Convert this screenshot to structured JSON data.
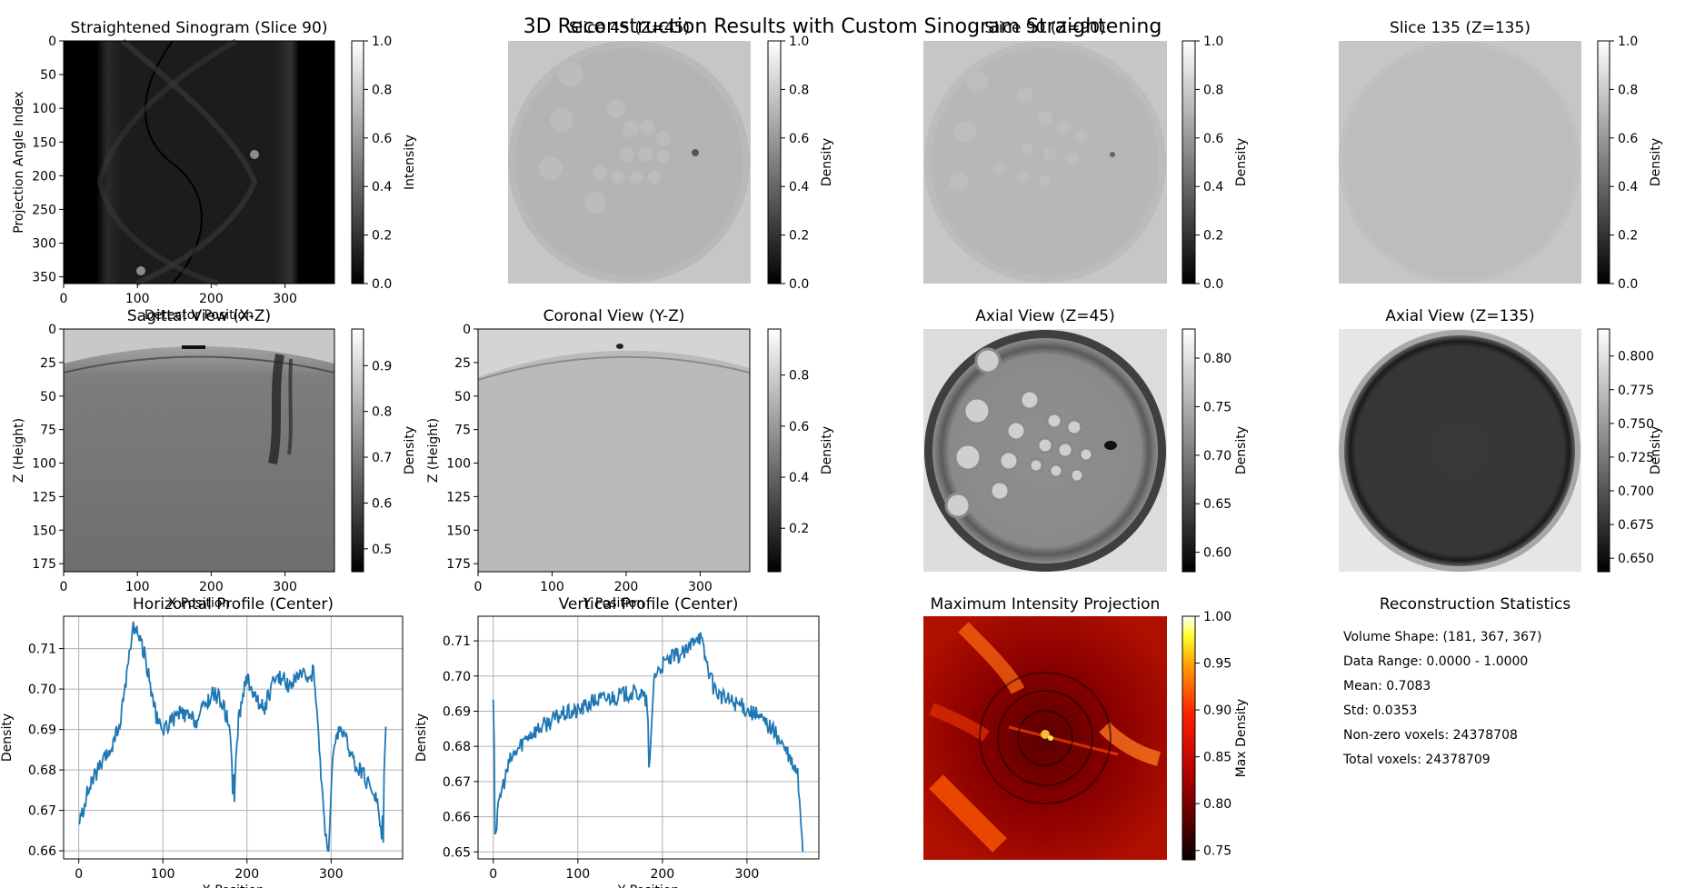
{
  "figure": {
    "suptitle": "3D Reconstruction Results with Custom Sinogram Straightening"
  },
  "chart_data": [
    {
      "type": "heatmap",
      "title": "Straightened Sinogram (Slice 90)",
      "xlabel": "Detector Position",
      "ylabel": "Projection Angle Index",
      "xticks": [
        "0",
        "100",
        "200",
        "300"
      ],
      "yticks": [
        "0",
        "50",
        "100",
        "150",
        "200",
        "250",
        "300",
        "350"
      ],
      "xlim": [
        0,
        367
      ],
      "ylim": [
        0,
        360
      ],
      "colorbar": {
        "label": "Intensity",
        "ticks": [
          "0.0",
          "0.2",
          "0.4",
          "0.6",
          "0.8",
          "1.0"
        ],
        "range": [
          0,
          1
        ],
        "cmap": "gray"
      }
    },
    {
      "type": "heatmap",
      "title": "Slice 45 (Z=45)",
      "colorbar": {
        "label": "Density",
        "ticks": [
          "0.0",
          "0.2",
          "0.4",
          "0.6",
          "0.8",
          "1.0"
        ],
        "range": [
          0,
          1
        ],
        "cmap": "gray"
      }
    },
    {
      "type": "heatmap",
      "title": "Slice 90 (Z=90)",
      "colorbar": {
        "label": "Density",
        "ticks": [
          "0.0",
          "0.2",
          "0.4",
          "0.6",
          "0.8",
          "1.0"
        ],
        "range": [
          0,
          1
        ],
        "cmap": "gray"
      }
    },
    {
      "type": "heatmap",
      "title": "Slice 135 (Z=135)",
      "colorbar": {
        "label": "Density",
        "ticks": [
          "0.0",
          "0.2",
          "0.4",
          "0.6",
          "0.8",
          "1.0"
        ],
        "range": [
          0,
          1
        ],
        "cmap": "gray"
      }
    },
    {
      "type": "heatmap",
      "title": "Sagittal View (X-Z)",
      "xlabel": "X Position",
      "ylabel": "Z (Height)",
      "xticks": [
        "0",
        "100",
        "200",
        "300"
      ],
      "yticks": [
        "0",
        "25",
        "50",
        "75",
        "100",
        "125",
        "150",
        "175"
      ],
      "xlim": [
        0,
        367
      ],
      "ylim": [
        0,
        181
      ],
      "colorbar": {
        "label": "Density",
        "ticks": [
          "0.5",
          "0.6",
          "0.7",
          "0.8",
          "0.9"
        ],
        "range": [
          0.45,
          0.98
        ],
        "cmap": "gray"
      }
    },
    {
      "type": "heatmap",
      "title": "Coronal View (Y-Z)",
      "xlabel": "Y Position",
      "ylabel": "Z (Height)",
      "xticks": [
        "0",
        "100",
        "200",
        "300"
      ],
      "yticks": [
        "0",
        "25",
        "50",
        "75",
        "100",
        "125",
        "150",
        "175"
      ],
      "xlim": [
        0,
        367
      ],
      "ylim": [
        0,
        181
      ],
      "colorbar": {
        "label": "Density",
        "ticks": [
          "0.2",
          "0.4",
          "0.6",
          "0.8"
        ],
        "range": [
          0.03,
          0.98
        ],
        "cmap": "gray"
      }
    },
    {
      "type": "heatmap",
      "title": "Axial View (Z=45)",
      "colorbar": {
        "label": "Density",
        "ticks": [
          "0.60",
          "0.65",
          "0.70",
          "0.75",
          "0.80"
        ],
        "range": [
          0.58,
          0.83
        ],
        "cmap": "gray"
      }
    },
    {
      "type": "heatmap",
      "title": "Axial View (Z=135)",
      "colorbar": {
        "label": "Density",
        "ticks": [
          "0.650",
          "0.675",
          "0.700",
          "0.725",
          "0.750",
          "0.775",
          "0.800"
        ],
        "range": [
          0.64,
          0.82
        ],
        "cmap": "gray"
      }
    },
    {
      "type": "line",
      "title": "Horizontal Profile (Center)",
      "xlabel": "X Position",
      "ylabel": "Density",
      "xlim": [
        -18,
        385
      ],
      "ylim": [
        0.658,
        0.718
      ],
      "xticks": [
        0,
        100,
        200,
        300
      ],
      "yticks": [
        0.66,
        0.67,
        0.68,
        0.69,
        0.7,
        0.71
      ],
      "ytick_labels": [
        "0.66",
        "0.67",
        "0.68",
        "0.69",
        "0.70",
        "0.71"
      ],
      "grid": true,
      "color": "#1f77b4",
      "knots": [
        [
          0,
          0.666
        ],
        [
          10,
          0.674
        ],
        [
          20,
          0.679
        ],
        [
          30,
          0.682
        ],
        [
          40,
          0.686
        ],
        [
          50,
          0.692
        ],
        [
          55,
          0.701
        ],
        [
          60,
          0.708
        ],
        [
          65,
          0.716
        ],
        [
          70,
          0.714
        ],
        [
          75,
          0.711
        ],
        [
          80,
          0.707
        ],
        [
          85,
          0.701
        ],
        [
          90,
          0.695
        ],
        [
          95,
          0.691
        ],
        [
          100,
          0.69
        ],
        [
          110,
          0.692
        ],
        [
          120,
          0.694
        ],
        [
          130,
          0.693
        ],
        [
          140,
          0.692
        ],
        [
          150,
          0.696
        ],
        [
          160,
          0.699
        ],
        [
          170,
          0.697
        ],
        [
          180,
          0.69
        ],
        [
          185,
          0.674
        ],
        [
          190,
          0.693
        ],
        [
          200,
          0.703
        ],
        [
          210,
          0.698
        ],
        [
          220,
          0.695
        ],
        [
          230,
          0.701
        ],
        [
          240,
          0.703
        ],
        [
          250,
          0.701
        ],
        [
          260,
          0.703
        ],
        [
          270,
          0.703
        ],
        [
          280,
          0.704
        ],
        [
          285,
          0.688
        ],
        [
          292,
          0.667
        ],
        [
          297,
          0.66
        ],
        [
          302,
          0.683
        ],
        [
          310,
          0.691
        ],
        [
          320,
          0.686
        ],
        [
          330,
          0.681
        ],
        [
          340,
          0.678
        ],
        [
          350,
          0.675
        ],
        [
          355,
          0.672
        ],
        [
          360,
          0.663
        ],
        [
          362,
          0.674
        ],
        [
          365,
          0.69
        ]
      ],
      "spikes": [
        [
          183,
          0.674
        ],
        [
          297,
          0.66
        ],
        [
          362,
          0.662
        ]
      ]
    },
    {
      "type": "line",
      "title": "Vertical Profile (Center)",
      "xlabel": "Y Position",
      "ylabel": "Density",
      "xlim": [
        -18,
        385
      ],
      "ylim": [
        0.648,
        0.717
      ],
      "xticks": [
        0,
        100,
        200,
        300
      ],
      "yticks": [
        0.65,
        0.66,
        0.67,
        0.68,
        0.69,
        0.7,
        0.71
      ],
      "ytick_labels": [
        "0.65",
        "0.66",
        "0.67",
        "0.68",
        "0.69",
        "0.70",
        "0.71"
      ],
      "grid": true,
      "color": "#1f77b4",
      "knots": [
        [
          0,
          0.695
        ],
        [
          3,
          0.656
        ],
        [
          8,
          0.666
        ],
        [
          20,
          0.676
        ],
        [
          40,
          0.683
        ],
        [
          60,
          0.686
        ],
        [
          80,
          0.689
        ],
        [
          100,
          0.69
        ],
        [
          120,
          0.693
        ],
        [
          140,
          0.694
        ],
        [
          160,
          0.695
        ],
        [
          175,
          0.695
        ],
        [
          182,
          0.692
        ],
        [
          185,
          0.674
        ],
        [
          190,
          0.7
        ],
        [
          200,
          0.703
        ],
        [
          210,
          0.705
        ],
        [
          220,
          0.706
        ],
        [
          230,
          0.707
        ],
        [
          240,
          0.712
        ],
        [
          245,
          0.711
        ],
        [
          250,
          0.706
        ],
        [
          260,
          0.697
        ],
        [
          270,
          0.694
        ],
        [
          290,
          0.692
        ],
        [
          310,
          0.689
        ],
        [
          330,
          0.685
        ],
        [
          345,
          0.679
        ],
        [
          355,
          0.674
        ],
        [
          360,
          0.672
        ],
        [
          363,
          0.66
        ],
        [
          366,
          0.652
        ]
      ],
      "spikes": [
        [
          184,
          0.674
        ],
        [
          366,
          0.65
        ],
        [
          2,
          0.655
        ]
      ]
    },
    {
      "type": "heatmap",
      "title": "Maximum Intensity Projection",
      "colorbar": {
        "label": "Max Density",
        "ticks": [
          "0.75",
          "0.80",
          "0.85",
          "0.90",
          "0.95",
          "1.00"
        ],
        "range": [
          0.74,
          1.0
        ],
        "cmap": "hot"
      }
    },
    {
      "type": "table",
      "title": "Reconstruction Statistics",
      "rows": [
        "Volume Shape: (181, 367, 367)",
        "Data Range: 0.0000 - 1.0000",
        "Mean: 0.7083",
        "Std: 0.0353",
        "Non-zero voxels: 24378708",
        "Total voxels: 24378709"
      ]
    }
  ]
}
